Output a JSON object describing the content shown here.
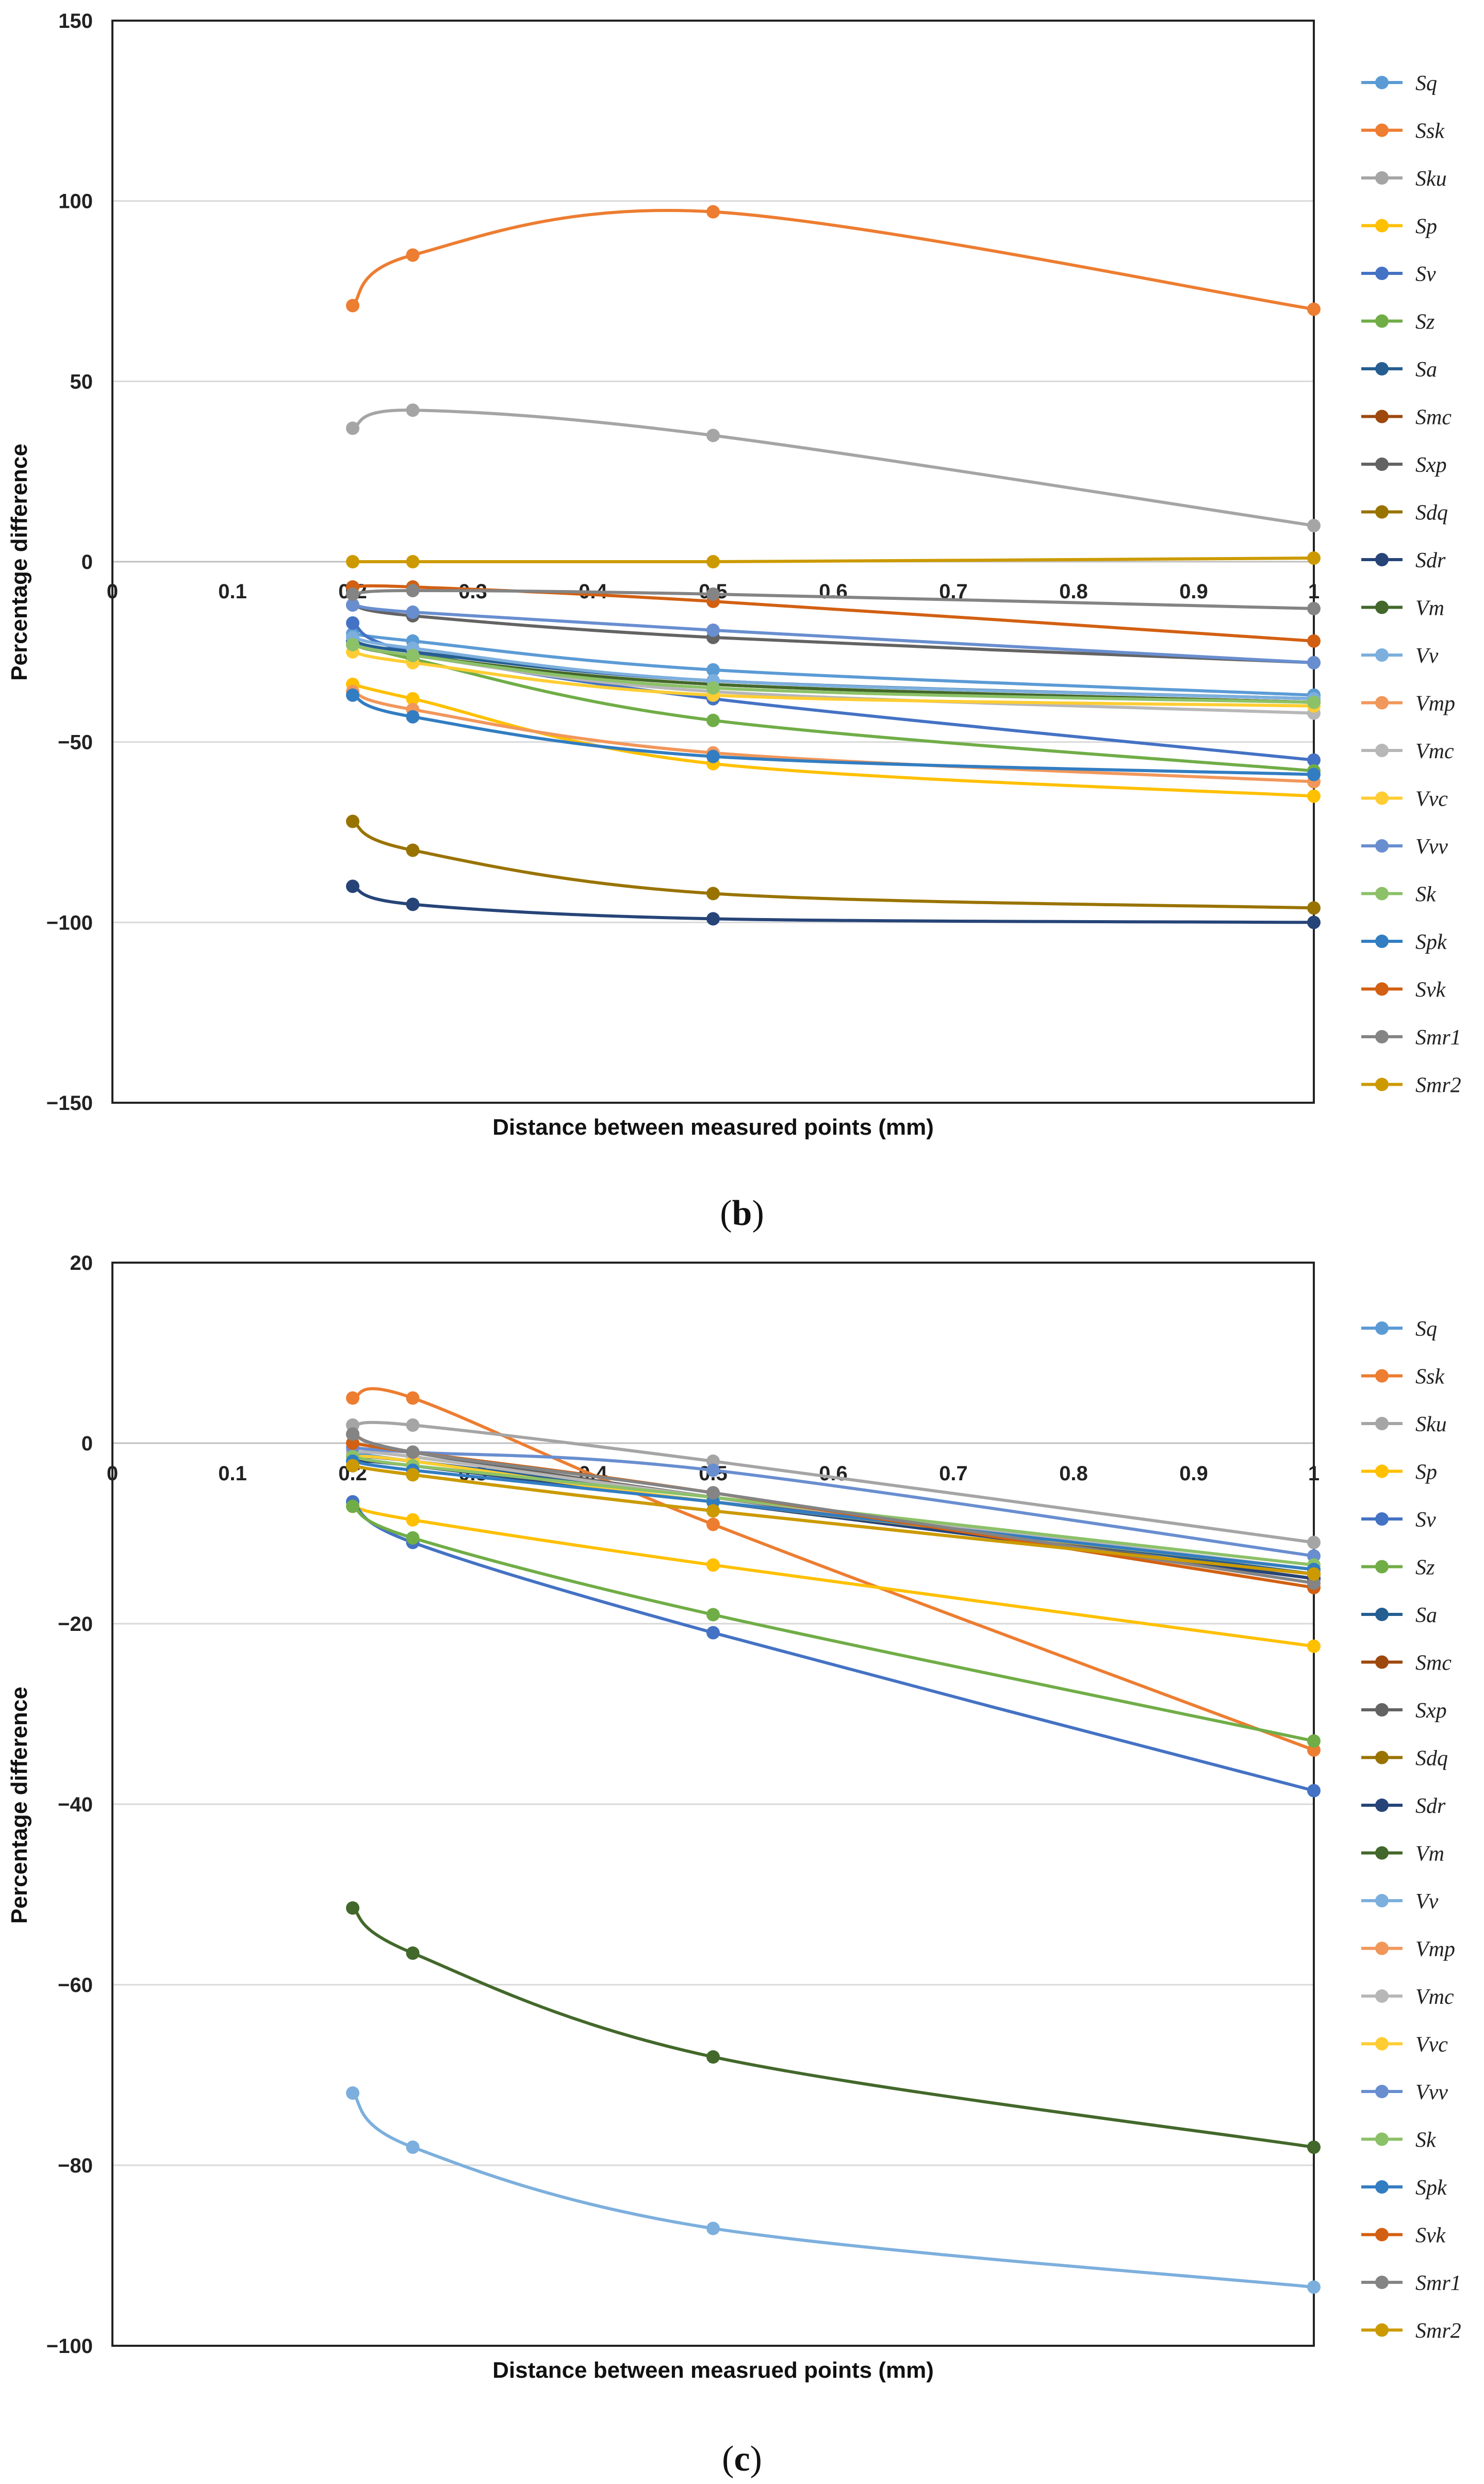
{
  "colors": {
    "Sq": "#5b9bd5",
    "Ssk": "#ed7d31",
    "Sku": "#a5a5a5",
    "Sp": "#ffc000",
    "Sv": "#4472c4",
    "Sz": "#70ad47",
    "Sa": "#255e91",
    "Smc": "#9e480e",
    "Sxp": "#636363",
    "Sdq": "#997300",
    "Sdr": "#264478",
    "Vm": "#43682b",
    "Vv": "#7cafdd",
    "Vmp": "#f1975a",
    "Vmc": "#b7b7b7",
    "Vvc": "#ffcd33",
    "Vvv": "#698ed0",
    "Sk": "#8cc168",
    "Spk": "#327dc2",
    "Svk": "#d26012",
    "Smr1": "#848484",
    "Smr2": "#cc9a00"
  },
  "chart_data": [
    {
      "type": "line",
      "panel_label": "(b)",
      "xlabel": "Distance between measured points  (mm)",
      "ylabel": "Percentage difference",
      "xlim": [
        0,
        1
      ],
      "ylim": [
        -150,
        150
      ],
      "x_ticks": [
        "0",
        "0.1",
        "0.2",
        "0.3",
        "0.4",
        "0.5",
        "0.6",
        "0.7",
        "0.8",
        "0.9",
        "1"
      ],
      "y_ticks": [
        "150",
        "100",
        "50",
        "0",
        "−50",
        "−100",
        "−150"
      ],
      "y_tick_values": [
        150,
        100,
        50,
        0,
        -50,
        -100,
        -150
      ],
      "legend_position": "right",
      "x": [
        0.2,
        0.25,
        0.5,
        1.0
      ],
      "series": [
        {
          "name": "Sq",
          "values": [
            -20,
            -22,
            -30,
            -37
          ]
        },
        {
          "name": "Ssk",
          "values": [
            71,
            85,
            97,
            70
          ]
        },
        {
          "name": "Sku",
          "values": [
            37,
            42,
            35,
            10
          ]
        },
        {
          "name": "Sp",
          "values": [
            -34,
            -38,
            -56,
            -65
          ]
        },
        {
          "name": "Sv",
          "values": [
            -17,
            -25,
            -38,
            -55
          ]
        },
        {
          "name": "Sz",
          "values": [
            -22,
            -27,
            -44,
            -58
          ]
        },
        {
          "name": "Sa",
          "values": [
            -22,
            -25,
            -33,
            -38
          ]
        },
        {
          "name": "Smc",
          "values": [
            -23,
            -26,
            -34,
            -39
          ]
        },
        {
          "name": "Sxp",
          "values": [
            -12,
            -15,
            -21,
            -28
          ]
        },
        {
          "name": "Sdq",
          "values": [
            -72,
            -80,
            -92,
            -96
          ]
        },
        {
          "name": "Sdr",
          "values": [
            -90,
            -95,
            -99,
            -100
          ]
        },
        {
          "name": "Vm",
          "values": [
            -23,
            -26,
            -34,
            -39
          ]
        },
        {
          "name": "Vv",
          "values": [
            -21,
            -24,
            -33,
            -38
          ]
        },
        {
          "name": "Vmp",
          "values": [
            -36,
            -41,
            -53,
            -61
          ]
        },
        {
          "name": "Vmc",
          "values": [
            -23,
            -26,
            -36,
            -42
          ]
        },
        {
          "name": "Vvc",
          "values": [
            -25,
            -28,
            -37,
            -40
          ]
        },
        {
          "name": "Vvv",
          "values": [
            -12,
            -14,
            -19,
            -28
          ]
        },
        {
          "name": "Sk",
          "values": [
            -23,
            -26,
            -35,
            -39
          ]
        },
        {
          "name": "Spk",
          "values": [
            -37,
            -43,
            -54,
            -59
          ]
        },
        {
          "name": "Svk",
          "values": [
            -7,
            -7,
            -11,
            -22
          ]
        },
        {
          "name": "Smr1",
          "values": [
            -9,
            -8,
            -9,
            -13
          ]
        },
        {
          "name": "Smr2",
          "values": [
            0,
            0,
            0,
            1
          ]
        }
      ]
    },
    {
      "type": "line",
      "panel_label": "(c)",
      "xlabel": "Distance between measrued points  (mm)",
      "ylabel": "Percentage difference",
      "xlim": [
        0,
        1
      ],
      "ylim": [
        -100,
        20
      ],
      "x_ticks": [
        "0",
        "0.1",
        "0.2",
        "0.3",
        "0.4",
        "0.5",
        "0.6",
        "0.7",
        "0.8",
        "0.9",
        "1"
      ],
      "y_ticks": [
        "20",
        "0",
        "−20",
        "−40",
        "−60",
        "−80",
        "−100"
      ],
      "y_tick_values": [
        20,
        0,
        -20,
        -40,
        -60,
        -80,
        -100
      ],
      "legend_position": "right",
      "x": [
        0.2,
        0.25,
        0.5,
        1.0
      ],
      "series": [
        {
          "name": "Sq",
          "values": [
            -1,
            -2,
            -6,
            -14
          ]
        },
        {
          "name": "Ssk",
          "values": [
            5,
            5,
            -9,
            -34
          ]
        },
        {
          "name": "Sku",
          "values": [
            2,
            2,
            -2,
            -11
          ]
        },
        {
          "name": "Sp",
          "values": [
            -7,
            -8.5,
            -13.5,
            -22.5
          ]
        },
        {
          "name": "Sv",
          "values": [
            -6.5,
            -11,
            -21,
            -38.5
          ]
        },
        {
          "name": "Sz",
          "values": [
            -7,
            -10.5,
            -19,
            -33
          ]
        },
        {
          "name": "Sa",
          "values": [
            -1.5,
            -2,
            -6,
            -14.5
          ]
        },
        {
          "name": "Smc",
          "values": [
            -1,
            -1.5,
            -6,
            -15
          ]
        },
        {
          "name": "Sxp",
          "values": [
            1,
            -1,
            -6,
            -15
          ]
        },
        {
          "name": "Sdq",
          "values": [
            -2.5,
            -3.5,
            -7.5,
            -14.5
          ]
        },
        {
          "name": "Sdr",
          "values": [
            -2,
            -2.5,
            -6.5,
            -15
          ]
        },
        {
          "name": "Vm",
          "values": [
            -51.5,
            -56.5,
            -68,
            -78
          ]
        },
        {
          "name": "Vv",
          "values": [
            -72,
            -78,
            -87,
            -93.5
          ]
        },
        {
          "name": "Vmp",
          "values": [
            -1,
            -1.5,
            -6,
            -14
          ]
        },
        {
          "name": "Vmc",
          "values": [
            -1,
            -1.5,
            -6,
            -14
          ]
        },
        {
          "name": "Vvc",
          "values": [
            -1.5,
            -2,
            -6.5,
            -14
          ]
        },
        {
          "name": "Vvv",
          "values": [
            -0.5,
            -1,
            -3,
            -12.5
          ]
        },
        {
          "name": "Sk",
          "values": [
            -1.5,
            -2.5,
            -6,
            -13.5
          ]
        },
        {
          "name": "Spk",
          "values": [
            -2,
            -3,
            -6.5,
            -14
          ]
        },
        {
          "name": "Svk",
          "values": [
            0,
            -1,
            -5.5,
            -16
          ]
        },
        {
          "name": "Smr1",
          "values": [
            1,
            -1,
            -5.5,
            -15.5
          ]
        },
        {
          "name": "Smr2",
          "values": [
            -2.5,
            -3.5,
            -7.5,
            -14.5
          ]
        }
      ]
    }
  ]
}
